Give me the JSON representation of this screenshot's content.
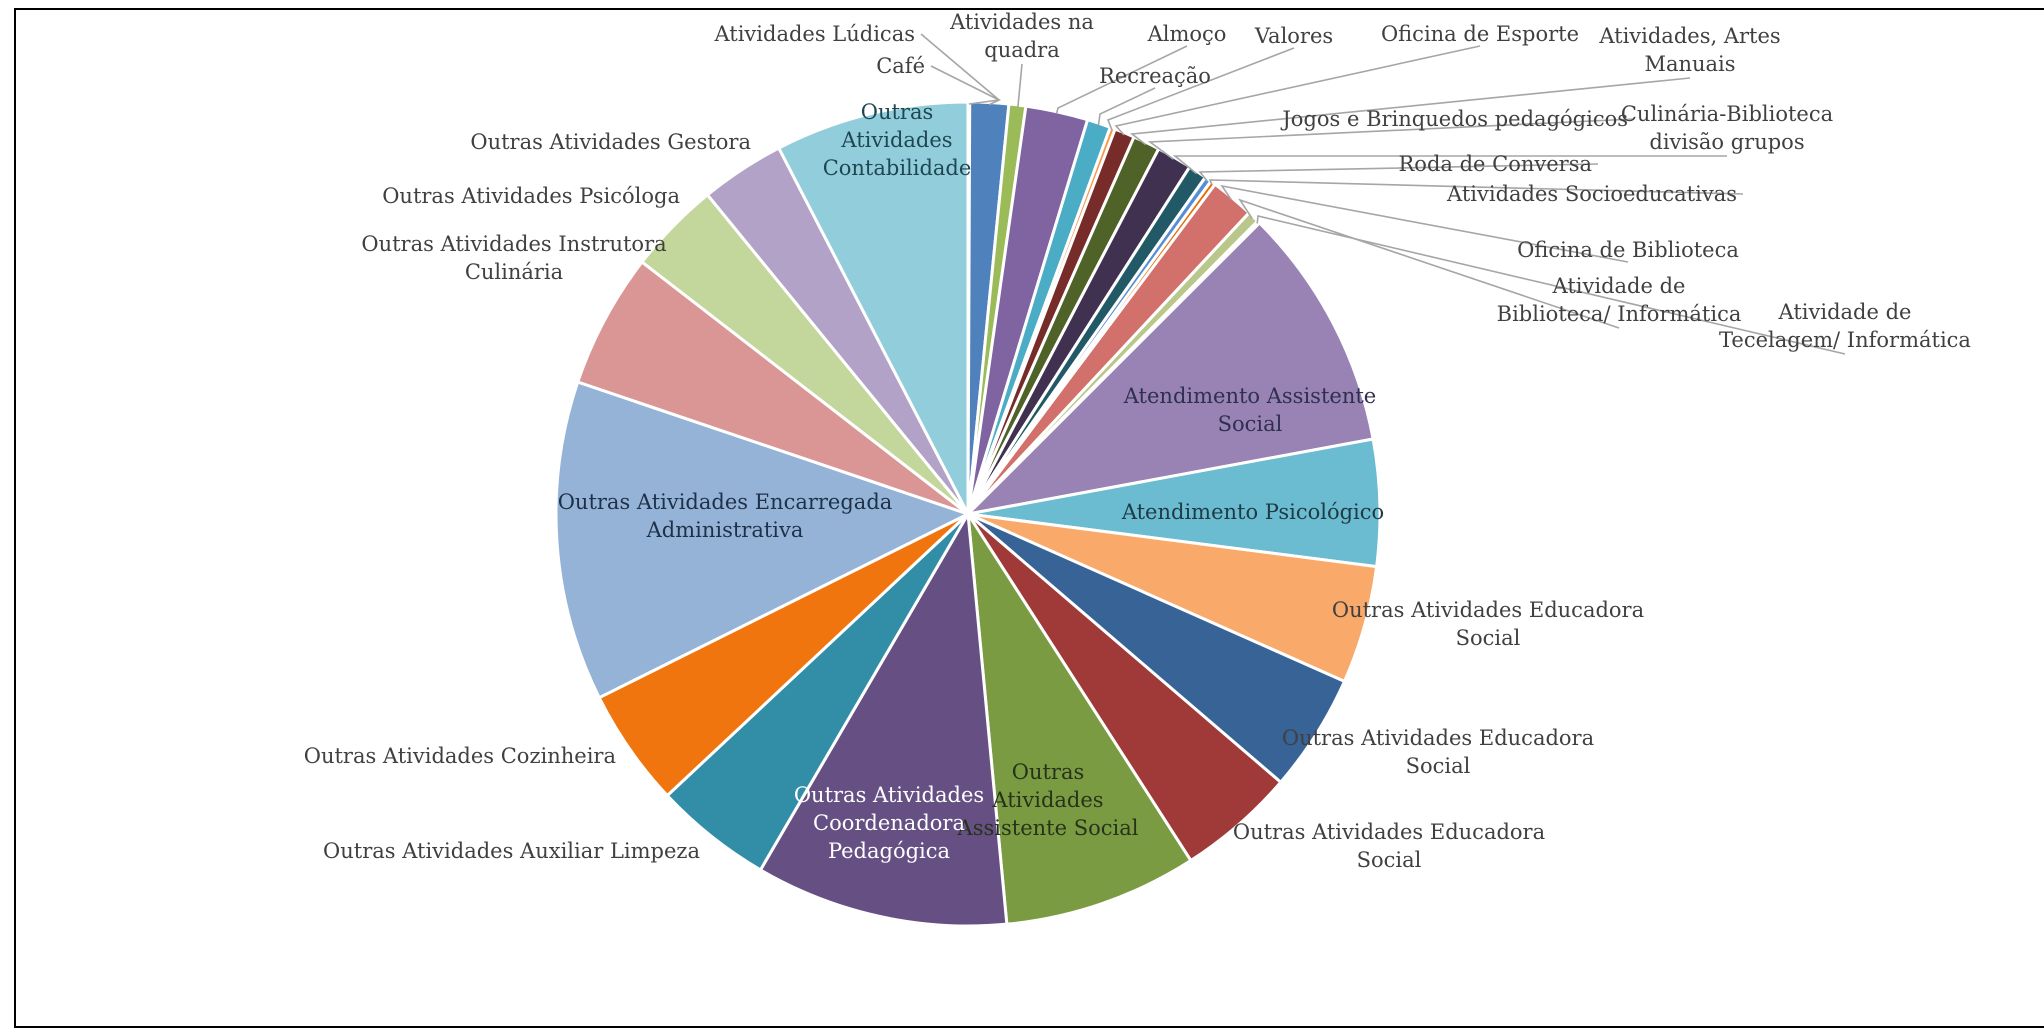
{
  "chart_data": {
    "type": "pie",
    "title": "",
    "legend": "none",
    "slices": [
      {
        "label": "Atividades Lúdicas",
        "value": 0.1,
        "color": "#4f81bd"
      },
      {
        "label": "Café",
        "value": 2.3,
        "color": "#4f81bd"
      },
      {
        "label": "Atividades na quadra",
        "value": 1.0,
        "color": "#9bbb59"
      },
      {
        "label": "Almoço",
        "value": 3.7,
        "color": "#8064a2"
      },
      {
        "label": "Recreação",
        "value": 1.4,
        "color": "#4bacc6"
      },
      {
        "label": "Valores",
        "value": 0.3,
        "color": "#f79646"
      },
      {
        "label": "Oficina de Esporte",
        "value": 1.2,
        "color": "#772c2a"
      },
      {
        "label": "Atividades, Artes Manuais",
        "value": 1.6,
        "color": "#4f6228"
      },
      {
        "label": "Jogos e Brinquedos pedagógicos",
        "value": 2.1,
        "color": "#403151"
      },
      {
        "label": "Culinária-Biblioteca divisão grupos",
        "value": 1.1,
        "color": "#215967"
      },
      {
        "label": "Roda de Conversa",
        "value": 0.4,
        "color": "#558ed5"
      },
      {
        "label": "Atividades Socioeducativas",
        "value": 0.3,
        "color": "#e46c0a"
      },
      {
        "label": "Oficina de Biblioteca",
        "value": 2.6,
        "color": "#d2706b"
      },
      {
        "label": "Atividade de Biblioteca/ Informática",
        "value": 0.7,
        "color": "#b9c88a"
      },
      {
        "label": "Atividade de Tecelagem/ Informática",
        "value": 0.15,
        "color": "#c6a5d4"
      },
      {
        "label": "Atendimento Assistente Social",
        "value": 14.5,
        "color": "#9983b5"
      },
      {
        "label": "Atendimento Psicológico",
        "value": 7.5,
        "color": "#6bbcd1"
      },
      {
        "label": "Outras Atividades Educadora Social",
        "value": 7.0,
        "color": "#f9aa6a"
      },
      {
        "label": "Outras Atividades Educadora Social",
        "value": 7.0,
        "color": "#386396"
      },
      {
        "label": "Outras Atividades Educadora Social",
        "value": 7.0,
        "color": "#a03a39"
      },
      {
        "label": "Outras Atividades Assistente Social",
        "value": 11.5,
        "color": "#7b9b43"
      },
      {
        "label": "Outras Atividades Coordenadora Pedagógica",
        "value": 15.0,
        "color": "#654f83"
      },
      {
        "label": "Outras Atividades Auxiliar Limpeza",
        "value": 7.0,
        "color": "#328ea6"
      },
      {
        "label": "Outras Atividades Cozinheira",
        "value": 7.0,
        "color": "#f1750e"
      },
      {
        "label": "Outras Atividades Encarregada Administrativa",
        "value": 19.0,
        "color": "#95b3d7"
      },
      {
        "label": "Outras Atividades Instrutora Culinária",
        "value": 8.0,
        "color": "#d99694"
      },
      {
        "label": "Outras Atividades Psicóloga",
        "value": 5.5,
        "color": "#c3d69b"
      },
      {
        "label": "Outras Atividades Gestora",
        "value": 5.0,
        "color": "#b3a2c7"
      },
      {
        "label": "Outras Atividades Contabilidade",
        "value": 11.5,
        "color": "#92cddc"
      }
    ]
  }
}
